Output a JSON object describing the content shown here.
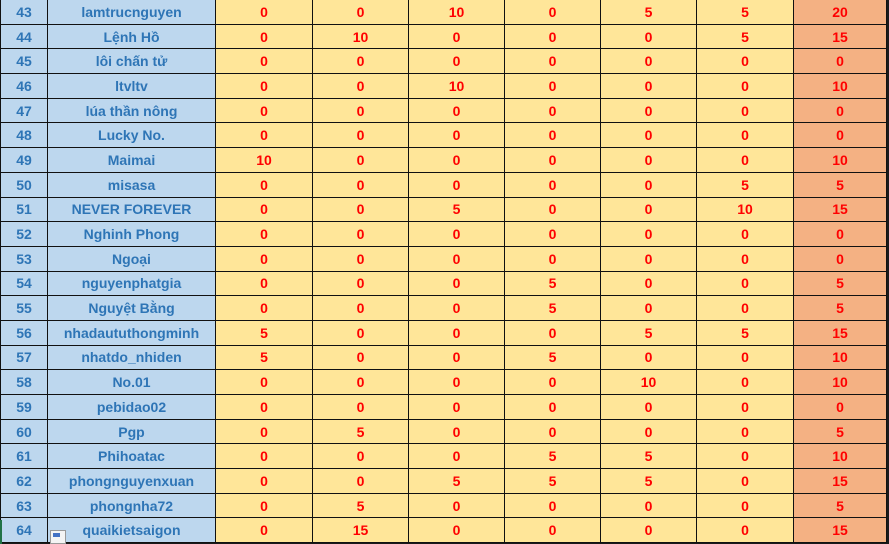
{
  "colors": {
    "name_bg": "#bdd7ee",
    "name_text": "#2e75b6",
    "value_bg": "#ffe699",
    "value_text": "#ff0000",
    "total_bg": "#f4b183"
  },
  "rows": [
    {
      "no": "43",
      "name": "lamtrucnguyen",
      "values": [
        "0",
        "0",
        "10",
        "0",
        "5",
        "5"
      ],
      "total": "20"
    },
    {
      "no": "44",
      "name": "Lệnh Hồ",
      "values": [
        "0",
        "10",
        "0",
        "0",
        "0",
        "5"
      ],
      "total": "15"
    },
    {
      "no": "45",
      "name": "lôi chấn tử",
      "values": [
        "0",
        "0",
        "0",
        "0",
        "0",
        "0"
      ],
      "total": "0"
    },
    {
      "no": "46",
      "name": "ltvltv",
      "values": [
        "0",
        "0",
        "10",
        "0",
        "0",
        "0"
      ],
      "total": "10"
    },
    {
      "no": "47",
      "name": "lúa thần nông",
      "values": [
        "0",
        "0",
        "0",
        "0",
        "0",
        "0"
      ],
      "total": "0"
    },
    {
      "no": "48",
      "name": "Lucky No.",
      "values": [
        "0",
        "0",
        "0",
        "0",
        "0",
        "0"
      ],
      "total": "0"
    },
    {
      "no": "49",
      "name": "Maimai",
      "values": [
        "10",
        "0",
        "0",
        "0",
        "0",
        "0"
      ],
      "total": "10"
    },
    {
      "no": "50",
      "name": "misasa",
      "values": [
        "0",
        "0",
        "0",
        "0",
        "0",
        "5"
      ],
      "total": "5"
    },
    {
      "no": "51",
      "name": "NEVER FOREVER",
      "values": [
        "0",
        "0",
        "5",
        "0",
        "0",
        "10"
      ],
      "total": "15"
    },
    {
      "no": "52",
      "name": "Nghinh Phong",
      "values": [
        "0",
        "0",
        "0",
        "0",
        "0",
        "0"
      ],
      "total": "0"
    },
    {
      "no": "53",
      "name": "Ngoại",
      "values": [
        "0",
        "0",
        "0",
        "0",
        "0",
        "0"
      ],
      "total": "0"
    },
    {
      "no": "54",
      "name": "nguyenphatgia",
      "values": [
        "0",
        "0",
        "0",
        "5",
        "0",
        "0"
      ],
      "total": "5"
    },
    {
      "no": "55",
      "name": "Nguyệt Bằng",
      "values": [
        "0",
        "0",
        "0",
        "5",
        "0",
        "0"
      ],
      "total": "5"
    },
    {
      "no": "56",
      "name": "nhadaututhongminh",
      "values": [
        "5",
        "0",
        "0",
        "0",
        "5",
        "5"
      ],
      "total": "15"
    },
    {
      "no": "57",
      "name": "nhatdo_nhiden",
      "values": [
        "5",
        "0",
        "0",
        "5",
        "0",
        "0"
      ],
      "total": "10"
    },
    {
      "no": "58",
      "name": "No.01",
      "values": [
        "0",
        "0",
        "0",
        "0",
        "10",
        "0"
      ],
      "total": "10"
    },
    {
      "no": "59",
      "name": "pebidao02",
      "values": [
        "0",
        "0",
        "0",
        "0",
        "0",
        "0"
      ],
      "total": "0"
    },
    {
      "no": "60",
      "name": "Pgp",
      "values": [
        "0",
        "5",
        "0",
        "0",
        "0",
        "0"
      ],
      "total": "5"
    },
    {
      "no": "61",
      "name": "Phihoatac",
      "values": [
        "0",
        "0",
        "0",
        "5",
        "5",
        "0"
      ],
      "total": "10"
    },
    {
      "no": "62",
      "name": "phongnguyenxuan",
      "values": [
        "0",
        "0",
        "5",
        "5",
        "5",
        "0"
      ],
      "total": "15"
    },
    {
      "no": "63",
      "name": "phongnha72",
      "values": [
        "0",
        "5",
        "0",
        "0",
        "0",
        "0"
      ],
      "total": "5"
    },
    {
      "no": "64",
      "name": "quaikietsaigon",
      "values": [
        "0",
        "15",
        "0",
        "0",
        "0",
        "0"
      ],
      "total": "15"
    }
  ]
}
